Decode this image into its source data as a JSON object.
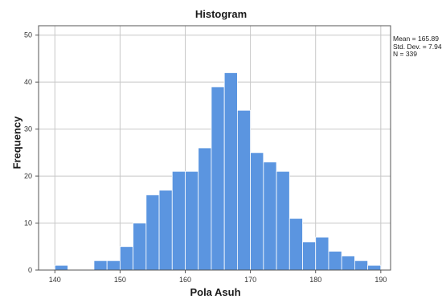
{
  "chart_data": {
    "type": "bar",
    "title": "Histogram",
    "xlabel": "Pola Asuh",
    "ylabel": "Frequency",
    "bar_color": "#5b95e0",
    "bar_edge_color": "#ffffff",
    "grid": true,
    "xlim": [
      137.5,
      191.5
    ],
    "ylim": [
      0,
      52
    ],
    "x_ticks": [
      "140",
      "150",
      "160",
      "170",
      "180",
      "190"
    ],
    "y_ticks": [
      "0",
      "10",
      "20",
      "30",
      "40",
      "50"
    ],
    "bin_width": 2,
    "bin_starts": [
      140,
      142,
      144,
      146,
      148,
      150,
      152,
      154,
      156,
      158,
      160,
      162,
      164,
      166,
      168,
      170,
      172,
      174,
      176,
      178,
      180,
      182,
      184,
      186,
      188
    ],
    "values": [
      1,
      0,
      0,
      2,
      2,
      5,
      10,
      16,
      17,
      21,
      21,
      26,
      39,
      42,
      34,
      25,
      23,
      21,
      11,
      6,
      7,
      4,
      3,
      2,
      1
    ],
    "stats": {
      "mean": "Mean = 165.89",
      "std": "Std. Dev. = 7.94",
      "n": "N = 339"
    }
  }
}
